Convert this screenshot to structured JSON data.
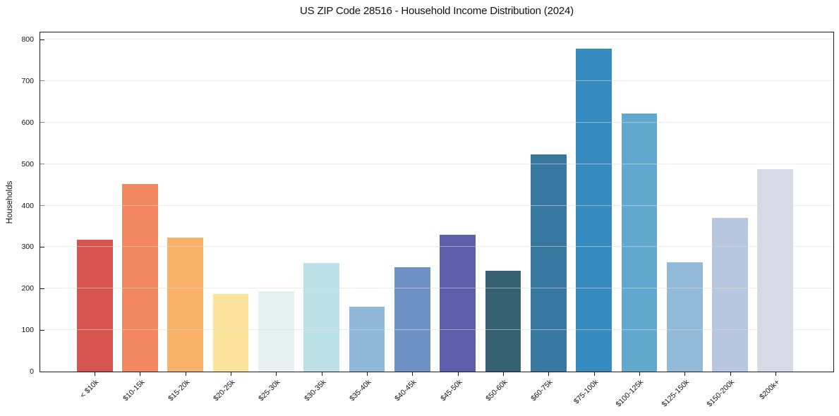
{
  "chart_data": {
    "type": "bar",
    "title": "US ZIP Code 28516 - Household Income Distribution (2024)",
    "xlabel": "",
    "ylabel": "Households",
    "categories": [
      "< $10k",
      "$10-15k",
      "$15-20k",
      "$20-25k",
      "$25-30k",
      "$30-35k",
      "$35-40k",
      "$40-45k",
      "$45-50k",
      "$50-60k",
      "$60-75k",
      "$75-100k",
      "$100-125k",
      "$125-150k",
      "$150-200k",
      "$200k+"
    ],
    "values": [
      318,
      452,
      323,
      187,
      193,
      262,
      156,
      251,
      329,
      243,
      524,
      778,
      622,
      264,
      370,
      488
    ],
    "bar_colors": [
      "#d5544f",
      "#f28761",
      "#fab26b",
      "#fbe39c",
      "#e7f1f1",
      "#bce0e8",
      "#90b9d9",
      "#6e92c5",
      "#5c5fab",
      "#366173",
      "#3877a0",
      "#368bc1",
      "#61a8cd",
      "#93b9d8",
      "#b6c7df",
      "#d8d9e7"
    ],
    "ylim": [
      0,
      817
    ],
    "yticks": [
      0,
      100,
      200,
      300,
      400,
      500,
      600,
      700,
      800
    ],
    "grid": "horizontal-light-over-bars",
    "x_tick_rotation": 45,
    "legend": "none",
    "bar_width_fraction": 0.79
  }
}
